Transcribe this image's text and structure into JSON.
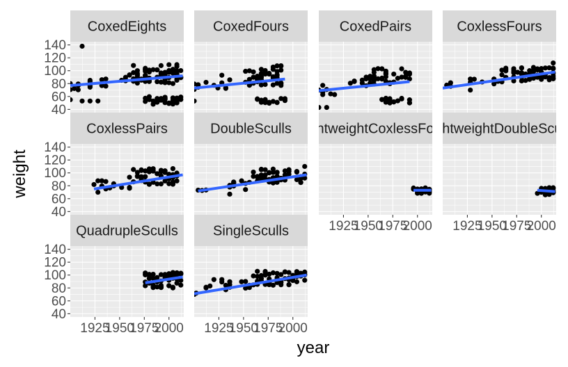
{
  "chart_data": {
    "type": "scatter",
    "xlabel": "year",
    "ylabel": "weight",
    "xlim": [
      1900,
      2015
    ],
    "ylim": [
      35,
      145
    ],
    "x_ticks": [
      1925,
      1950,
      1975,
      2000
    ],
    "x_tick_labels": [
      "1925",
      "1950",
      "1975",
      "2000"
    ],
    "y_ticks": [
      40,
      60,
      80,
      100,
      120,
      140
    ],
    "y_tick_labels": [
      "40",
      "60",
      "80",
      "100",
      "120",
      "140"
    ],
    "grid": true,
    "legend": "none",
    "point_color": "#000000",
    "smooth_color": "#3366ff",
    "panel_background": "#ebebeb",
    "strip_background": "#d9d9d9",
    "facets": [
      {
        "label": "CoxedEights",
        "fit": [
          [
            1900,
            77
          ],
          [
            2014,
            92
          ]
        ],
        "clusters": [
          {
            "x": [
              1900,
              1908
            ],
            "y": [
              70,
              82
            ],
            "n": 6
          },
          {
            "x": [
              1912,
              1936
            ],
            "y": [
              74,
              88
            ],
            "n": 8
          },
          {
            "x": [
              1948,
              1956
            ],
            "y": [
              84,
              90
            ],
            "n": 4
          },
          {
            "x": [
              1960,
              2014
            ],
            "y": [
              80,
              110
            ],
            "n": 70
          },
          {
            "x": [
              1976,
              2014
            ],
            "y": [
              48,
              60
            ],
            "n": 35
          }
        ],
        "points": [
          [
            1900,
            55
          ],
          [
            1912,
            53
          ],
          [
            1920,
            53
          ],
          [
            1928,
            53
          ],
          [
            1912,
            138
          ],
          [
            1932,
            86
          ]
        ]
      },
      {
        "label": "CoxedFours",
        "fit": [
          [
            1900,
            73
          ],
          [
            1992,
            87
          ]
        ],
        "clusters": [
          {
            "x": [
              1900,
              1912
            ],
            "y": [
              68,
              80
            ],
            "n": 6
          },
          {
            "x": [
              1920,
              1936
            ],
            "y": [
              72,
              95
            ],
            "n": 6
          },
          {
            "x": [
              1952,
              1992
            ],
            "y": [
              76,
              108
            ],
            "n": 45
          },
          {
            "x": [
              1964,
              1992
            ],
            "y": [
              48,
              58
            ],
            "n": 18
          }
        ],
        "points": [
          [
            1900,
            53
          ],
          [
            1912,
            82
          ],
          [
            1928,
            93
          ]
        ]
      },
      {
        "label": "CoxedPairs",
        "fit": [
          [
            1900,
            69
          ],
          [
            1992,
            83
          ]
        ],
        "clusters": [
          {
            "x": [
              1900,
              1920
            ],
            "y": [
              60,
              78
            ],
            "n": 6
          },
          {
            "x": [
              1924,
              1952
            ],
            "y": [
              76,
              95
            ],
            "n": 10
          },
          {
            "x": [
              1952,
              1992
            ],
            "y": [
              78,
              104
            ],
            "n": 35
          },
          {
            "x": [
              1964,
              1992
            ],
            "y": [
              48,
              58
            ],
            "n": 18
          }
        ],
        "points": [
          [
            1900,
            43
          ],
          [
            1908,
            43
          ],
          [
            1904,
            63
          ]
        ]
      },
      {
        "label": "CoxlessFours",
        "fit": [
          [
            1900,
            73
          ],
          [
            2014,
            98
          ]
        ],
        "clusters": [
          {
            "x": [
              1904,
              1912
            ],
            "y": [
              74,
              82
            ],
            "n": 3
          },
          {
            "x": [
              1924,
              1960
            ],
            "y": [
              76,
              88
            ],
            "n": 8
          },
          {
            "x": [
              1960,
              2014
            ],
            "y": [
              84,
              106
            ],
            "n": 55
          }
        ],
        "points": [
          [
            1928,
            70
          ],
          [
            2012,
            112
          ]
        ]
      },
      {
        "label": "CoxlessPairs",
        "fit": [
          [
            1924,
            75
          ],
          [
            2014,
            97
          ]
        ],
        "clusters": [
          {
            "x": [
              1924,
              1960
            ],
            "y": [
              74,
              90
            ],
            "n": 12
          },
          {
            "x": [
              1960,
              2014
            ],
            "y": [
              82,
              108
            ],
            "n": 50
          }
        ],
        "points": [
          [
            1924,
            82
          ],
          [
            1928,
            70
          ]
        ]
      },
      {
        "label": "DoubleSculls",
        "fit": [
          [
            1904,
            72
          ],
          [
            2014,
            97
          ]
        ],
        "clusters": [
          {
            "x": [
              1904,
              1912
            ],
            "y": [
              70,
              76
            ],
            "n": 3
          },
          {
            "x": [
              1928,
              1960
            ],
            "y": [
              74,
              88
            ],
            "n": 10
          },
          {
            "x": [
              1960,
              2014
            ],
            "y": [
              84,
              106
            ],
            "n": 55
          }
        ],
        "points": [
          [
            1936,
            67
          ],
          [
            2012,
            110
          ]
        ]
      },
      {
        "label": "LightweightCoxlessFours",
        "fit": [
          [
            1996,
            73
          ],
          [
            2014,
            73
          ]
        ],
        "clusters": [
          {
            "x": [
              1996,
              2014
            ],
            "y": [
              68,
              77
            ],
            "n": 30
          }
        ],
        "points": []
      },
      {
        "label": "LightweightDoubleSculls",
        "fit": [
          [
            1996,
            73
          ],
          [
            2014,
            71
          ]
        ],
        "clusters": [
          {
            "x": [
              1996,
              2014
            ],
            "y": [
              66,
              77
            ],
            "n": 30
          }
        ],
        "points": []
      },
      {
        "label": "QuadrupleSculls",
        "fit": [
          [
            1976,
            88
          ],
          [
            2014,
            97
          ]
        ],
        "clusters": [
          {
            "x": [
              1976,
              2014
            ],
            "y": [
              80,
              104
            ],
            "n": 60
          }
        ],
        "points": []
      },
      {
        "label": "SingleSculls",
        "fit": [
          [
            1900,
            71
          ],
          [
            2014,
            100
          ]
        ],
        "clusters": [
          {
            "x": [
              1908,
              1916
            ],
            "y": [
              78,
              84
            ],
            "n": 3
          },
          {
            "x": [
              1924,
              1960
            ],
            "y": [
              76,
              92
            ],
            "n": 12
          },
          {
            "x": [
              1960,
              2014
            ],
            "y": [
              84,
              106
            ],
            "n": 60
          }
        ],
        "points": [
          [
            1900,
            70
          ],
          [
            1902,
            72
          ],
          [
            1920,
            93
          ],
          [
            1928,
            93
          ]
        ]
      }
    ]
  }
}
